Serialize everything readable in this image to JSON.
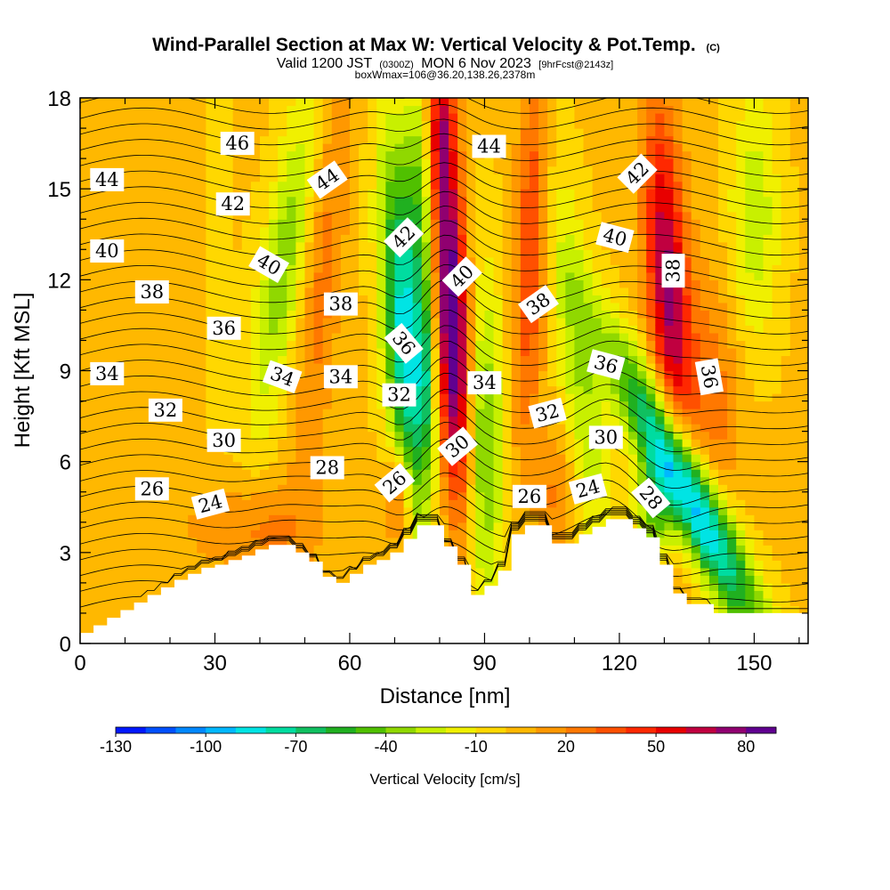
{
  "chart_data": {
    "type": "heatmap",
    "title": "Wind-Parallel Section at Max W: Vertical Velocity & Pot.Temp.",
    "title_mark": "(C)",
    "subtitle_parts": [
      "Valid 1200 JST",
      "(0300Z)",
      "MON 6 Nov 2023",
      "[9hrFcst@2143z]"
    ],
    "subtitle2": "boxWmax=106@36.20,138.26,2378m",
    "xlabel": "Distance [nm]",
    "ylabel": "Height [Kft MSL]",
    "xlim": [
      0,
      162
    ],
    "ylim": [
      0,
      18
    ],
    "x_ticks": [
      0,
      30,
      60,
      90,
      120,
      150
    ],
    "x_tick_labels": [
      "0",
      "30",
      "60",
      "90",
      "120",
      "150"
    ],
    "y_ticks": [
      0,
      3,
      6,
      9,
      12,
      15,
      18
    ],
    "y_tick_labels": [
      "0",
      "3",
      "6",
      "9",
      "12",
      "15",
      "18"
    ],
    "colorbar": {
      "title": "Vertical Velocity [cm/s]",
      "range": [
        -130,
        90
      ],
      "ticks": [
        -130,
        -100,
        -70,
        -40,
        -10,
        20,
        50,
        80
      ],
      "tick_labels": [
        "-130",
        "-100",
        "-70",
        "-40",
        "-10",
        "20",
        "50",
        "80"
      ],
      "colors": [
        "#0018ff",
        "#0050ff",
        "#0088ff",
        "#00b8ff",
        "#00e4e4",
        "#00dca0",
        "#10c060",
        "#20b020",
        "#50c000",
        "#90d800",
        "#c8f000",
        "#f0f000",
        "#ffd800",
        "#ffb800",
        "#ff9800",
        "#ff7800",
        "#ff5000",
        "#ff2800",
        "#e80000",
        "#c00040",
        "#900070",
        "#600090"
      ]
    },
    "terrain": [
      [
        0,
        0.35
      ],
      [
        3,
        0.35
      ],
      [
        3,
        0.6
      ],
      [
        6,
        0.6
      ],
      [
        6,
        0.85
      ],
      [
        9,
        0.85
      ],
      [
        9,
        1.1
      ],
      [
        12,
        1.1
      ],
      [
        12,
        1.35
      ],
      [
        15,
        1.35
      ],
      [
        15,
        1.6
      ],
      [
        18,
        1.6
      ],
      [
        18,
        1.85
      ],
      [
        21,
        1.85
      ],
      [
        21,
        2.1
      ],
      [
        24,
        2.1
      ],
      [
        24,
        2.3
      ],
      [
        27,
        2.3
      ],
      [
        27,
        2.5
      ],
      [
        30,
        2.5
      ],
      [
        30,
        2.6
      ],
      [
        33,
        2.6
      ],
      [
        33,
        2.75
      ],
      [
        36,
        2.75
      ],
      [
        36,
        2.9
      ],
      [
        39,
        2.9
      ],
      [
        39,
        3.1
      ],
      [
        42,
        3.1
      ],
      [
        42,
        3.25
      ],
      [
        48,
        3.25
      ],
      [
        48,
        3.0
      ],
      [
        51,
        3.0
      ],
      [
        51,
        2.7
      ],
      [
        54,
        2.7
      ],
      [
        54,
        2.2
      ],
      [
        57,
        2.2
      ],
      [
        57,
        2.0
      ],
      [
        60,
        2.0
      ],
      [
        60,
        2.3
      ],
      [
        63,
        2.3
      ],
      [
        63,
        2.6
      ],
      [
        66,
        2.6
      ],
      [
        66,
        2.75
      ],
      [
        69,
        2.75
      ],
      [
        69,
        3.0
      ],
      [
        72,
        3.0
      ],
      [
        72,
        3.45
      ],
      [
        75,
        3.45
      ],
      [
        75,
        3.9
      ],
      [
        81,
        3.9
      ],
      [
        81,
        3.2
      ],
      [
        84,
        3.2
      ],
      [
        84,
        2.6
      ],
      [
        87,
        2.6
      ],
      [
        87,
        1.6
      ],
      [
        90,
        1.6
      ],
      [
        90,
        1.9
      ],
      [
        93,
        1.9
      ],
      [
        93,
        2.4
      ],
      [
        96,
        2.4
      ],
      [
        96,
        3.6
      ],
      [
        99,
        3.6
      ],
      [
        99,
        3.9
      ],
      [
        105,
        3.9
      ],
      [
        105,
        3.3
      ],
      [
        111,
        3.3
      ],
      [
        111,
        3.6
      ],
      [
        114,
        3.6
      ],
      [
        114,
        3.85
      ],
      [
        117,
        3.85
      ],
      [
        117,
        4.1
      ],
      [
        123,
        4.1
      ],
      [
        123,
        3.8
      ],
      [
        126,
        3.8
      ],
      [
        126,
        3.5
      ],
      [
        129,
        3.5
      ],
      [
        129,
        2.6
      ],
      [
        132,
        2.6
      ],
      [
        132,
        1.65
      ],
      [
        135,
        1.65
      ],
      [
        135,
        1.3
      ],
      [
        141,
        1.3
      ],
      [
        141,
        1.0
      ],
      [
        162,
        1.0
      ]
    ],
    "contour_labels": [
      {
        "text": "46",
        "x": 35,
        "y": 16.5,
        "rot": 0
      },
      {
        "text": "44",
        "x": 6,
        "y": 15.3,
        "rot": 0
      },
      {
        "text": "44",
        "x": 55,
        "y": 15.3,
        "rot": -35
      },
      {
        "text": "44",
        "x": 91,
        "y": 16.4,
        "rot": 0
      },
      {
        "text": "42",
        "x": 34,
        "y": 14.5,
        "rot": 0
      },
      {
        "text": "42",
        "x": 72,
        "y": 13.4,
        "rot": -45
      },
      {
        "text": "42",
        "x": 124,
        "y": 15.5,
        "rot": -45
      },
      {
        "text": "40",
        "x": 6,
        "y": 12.95,
        "rot": 0
      },
      {
        "text": "40",
        "x": 42,
        "y": 12.5,
        "rot": 30
      },
      {
        "text": "40",
        "x": 85,
        "y": 12.1,
        "rot": -45
      },
      {
        "text": "40",
        "x": 119,
        "y": 13.4,
        "rot": 15
      },
      {
        "text": "38",
        "x": 16,
        "y": 11.6,
        "rot": 0
      },
      {
        "text": "38",
        "x": 58,
        "y": 11.2,
        "rot": 0
      },
      {
        "text": "38",
        "x": 102,
        "y": 11.2,
        "rot": -35
      },
      {
        "text": "38",
        "x": 132,
        "y": 12.3,
        "rot": -90
      },
      {
        "text": "36",
        "x": 32,
        "y": 10.4,
        "rot": 0
      },
      {
        "text": "36",
        "x": 72,
        "y": 9.9,
        "rot": 50
      },
      {
        "text": "36",
        "x": 117,
        "y": 9.2,
        "rot": 15
      },
      {
        "text": "36",
        "x": 140,
        "y": 8.8,
        "rot": 80
      },
      {
        "text": "34",
        "x": 6,
        "y": 8.9,
        "rot": 0
      },
      {
        "text": "34",
        "x": 45,
        "y": 8.8,
        "rot": 20
      },
      {
        "text": "34",
        "x": 58,
        "y": 8.8,
        "rot": 0
      },
      {
        "text": "34",
        "x": 90,
        "y": 8.6,
        "rot": 0
      },
      {
        "text": "32",
        "x": 19,
        "y": 7.7,
        "rot": 0
      },
      {
        "text": "32",
        "x": 71,
        "y": 8.2,
        "rot": 0
      },
      {
        "text": "32",
        "x": 104,
        "y": 7.6,
        "rot": -15
      },
      {
        "text": "30",
        "x": 32,
        "y": 6.7,
        "rot": 0
      },
      {
        "text": "30",
        "x": 84,
        "y": 6.5,
        "rot": -40
      },
      {
        "text": "30",
        "x": 117,
        "y": 6.8,
        "rot": 0
      },
      {
        "text": "28",
        "x": 55,
        "y": 5.8,
        "rot": 0
      },
      {
        "text": "28",
        "x": 127,
        "y": 4.8,
        "rot": 50
      },
      {
        "text": "26",
        "x": 16,
        "y": 5.1,
        "rot": 0
      },
      {
        "text": "26",
        "x": 70,
        "y": 5.3,
        "rot": -40
      },
      {
        "text": "26",
        "x": 100,
        "y": 4.85,
        "rot": 0
      },
      {
        "text": "24",
        "x": 29,
        "y": 4.6,
        "rot": -15
      },
      {
        "text": "24",
        "x": 113,
        "y": 5.1,
        "rot": -15
      }
    ]
  }
}
